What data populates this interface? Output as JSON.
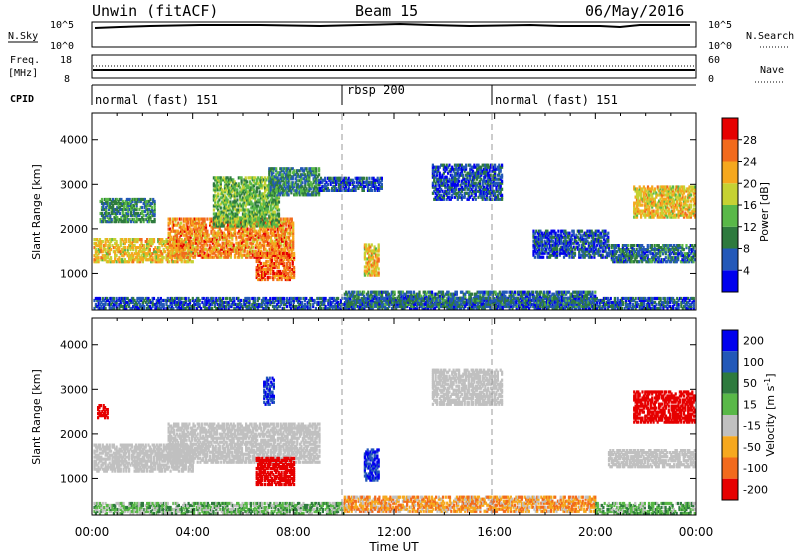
{
  "header": {
    "station": "Unwin (fitACF)",
    "beam": "Beam 15",
    "date": "06/May/2016"
  },
  "status_rows": {
    "nsky": {
      "label": "N.Sky",
      "tick_top": "10^5",
      "tick_bottom": "10^0"
    },
    "nsearch": {
      "label": "N.Search",
      "tick_top": "10^5",
      "tick_bottom": "10^0"
    },
    "freq": {
      "label_top": "Freq.",
      "label_bottom": "[MHz]",
      "tick_top": "18",
      "tick_bottom": "8"
    },
    "nave": {
      "label": "Nave",
      "tick_top": "60",
      "tick_bottom": "0"
    },
    "cpid": {
      "label": "CPID"
    }
  },
  "cpid_segments": [
    {
      "name": "normal (fast) 151",
      "start_hour": 0
    },
    {
      "name": "rbsp 200",
      "start_hour": 10
    },
    {
      "name": "normal (fast) 151",
      "start_hour": 16
    }
  ],
  "chart_data": [
    {
      "type": "heatmap",
      "panel": "power",
      "ylabel": "Slant Range [km]",
      "xlabel": "Time UT",
      "x_ticks": [
        "00:00",
        "04:00",
        "08:00",
        "12:00",
        "16:00",
        "20:00",
        "00:00"
      ],
      "x_tick_hours": [
        0,
        4,
        8,
        12,
        16,
        20,
        24
      ],
      "xlim_hours": [
        0,
        24
      ],
      "y_ticks": [
        1000,
        2000,
        3000,
        4000
      ],
      "ylim": [
        180,
        4600
      ],
      "colorbar": {
        "label": "Power [dB]",
        "ticks": [
          4,
          8,
          12,
          16,
          20,
          24,
          28
        ],
        "range": [
          0,
          32
        ],
        "colors": [
          "#0000ee",
          "#2358b8",
          "#2e7a3e",
          "#59b848",
          "#c6d233",
          "#f6a81e",
          "#f26a1c",
          "#e60000"
        ]
      },
      "regions": [
        {
          "t0": 0.0,
          "t1": 4.0,
          "r0": 1300,
          "r1": 1800,
          "dB": 20
        },
        {
          "t0": 3.0,
          "t1": 8.0,
          "r0": 1400,
          "r1": 2300,
          "dB": 24
        },
        {
          "t0": 6.5,
          "t1": 8.0,
          "r0": 900,
          "r1": 1500,
          "dB": 26
        },
        {
          "t0": 4.8,
          "t1": 7.4,
          "r0": 2100,
          "r1": 3200,
          "dB": 14
        },
        {
          "t0": 0.3,
          "t1": 2.5,
          "r0": 2200,
          "r1": 2700,
          "dB": 10
        },
        {
          "t0": 7.0,
          "t1": 9.0,
          "r0": 2800,
          "r1": 3400,
          "dB": 10
        },
        {
          "t0": 10.8,
          "t1": 11.4,
          "r0": 1000,
          "r1": 1700,
          "dB": 20
        },
        {
          "t0": 13.5,
          "t1": 16.3,
          "r0": 2700,
          "r1": 3500,
          "dB": 6
        },
        {
          "t0": 9.0,
          "t1": 11.5,
          "r0": 2900,
          "r1": 3200,
          "dB": 6
        },
        {
          "t0": 17.5,
          "t1": 20.5,
          "r0": 1400,
          "r1": 2000,
          "dB": 6
        },
        {
          "t0": 20.5,
          "t1": 24.0,
          "r0": 1300,
          "r1": 1700,
          "dB": 8
        },
        {
          "t0": 21.5,
          "t1": 24.0,
          "r0": 2300,
          "r1": 3000,
          "dB": 20
        },
        {
          "t0": 0.0,
          "t1": 24.0,
          "r0": 250,
          "r1": 500,
          "dB": 6
        },
        {
          "t0": 10.0,
          "t1": 20.0,
          "r0": 300,
          "r1": 650,
          "dB": 8
        }
      ]
    },
    {
      "type": "heatmap",
      "panel": "velocity",
      "ylabel": "Slant Range [km]",
      "xlabel": "Time UT",
      "x_ticks": [
        "00:00",
        "04:00",
        "08:00",
        "12:00",
        "16:00",
        "20:00",
        "00:00"
      ],
      "x_tick_hours": [
        0,
        4,
        8,
        12,
        16,
        20,
        24
      ],
      "xlim_hours": [
        0,
        24
      ],
      "y_ticks": [
        1000,
        2000,
        3000,
        4000
      ],
      "ylim": [
        180,
        4600
      ],
      "colorbar": {
        "label": "Velocity [m s^-1]",
        "ticks": [
          200,
          100,
          50,
          15,
          -15,
          -50,
          -100,
          -200
        ],
        "colors": [
          "#0000ee",
          "#2358b8",
          "#2e7a3e",
          "#59b848",
          "#c0c0c0",
          "#f6a81e",
          "#f26a1c",
          "#e60000"
        ]
      },
      "regions": [
        {
          "t0": 0.0,
          "t1": 4.0,
          "r0": 1200,
          "r1": 1800,
          "v": 0
        },
        {
          "t0": 3.0,
          "t1": 9.0,
          "r0": 1400,
          "r1": 2300,
          "v": 0
        },
        {
          "t0": 6.5,
          "t1": 8.0,
          "r0": 900,
          "r1": 1500,
          "v": -180
        },
        {
          "t0": 6.8,
          "t1": 7.2,
          "r0": 2700,
          "r1": 3300,
          "v": 200
        },
        {
          "t0": 10.8,
          "t1": 11.4,
          "r0": 1000,
          "r1": 1700,
          "v": 200
        },
        {
          "t0": 13.5,
          "t1": 16.3,
          "r0": 2700,
          "r1": 3500,
          "v": 0
        },
        {
          "t0": 0.2,
          "t1": 0.6,
          "r0": 2400,
          "r1": 2700,
          "v": -200
        },
        {
          "t0": 20.5,
          "t1": 24.0,
          "r0": 1300,
          "r1": 1700,
          "v": 0
        },
        {
          "t0": 21.5,
          "t1": 24.0,
          "r0": 2300,
          "r1": 3000,
          "v": -150
        },
        {
          "t0": 0.0,
          "t1": 10.0,
          "r0": 250,
          "r1": 500,
          "v": 30
        },
        {
          "t0": 10.0,
          "t1": 20.0,
          "r0": 300,
          "r1": 650,
          "v": -40
        },
        {
          "t0": 20.0,
          "t1": 24.0,
          "r0": 250,
          "r1": 500,
          "v": 40
        }
      ]
    }
  ]
}
